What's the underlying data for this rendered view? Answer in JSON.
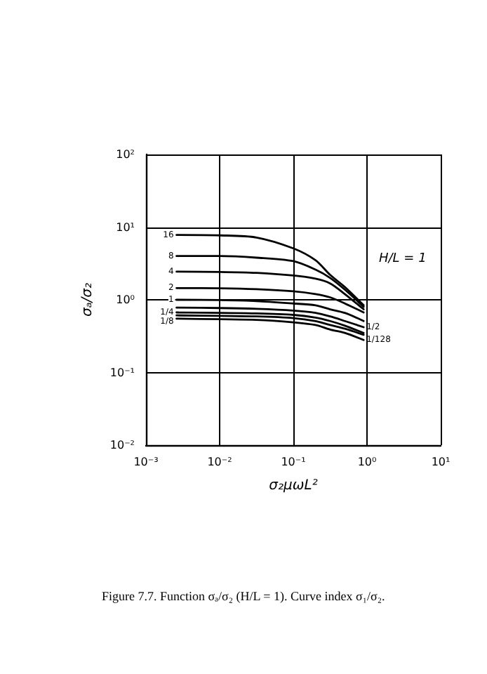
{
  "chart_data": {
    "type": "line",
    "xlabel": "σ₂μωL²",
    "ylabel": "σₐ/σ₂",
    "log": "xy",
    "grid": true,
    "marker": "none",
    "line_style": "solid",
    "xlim": [
      0.001,
      10
    ],
    "ylim": [
      0.01,
      100
    ],
    "xticks": [
      {
        "value": 0.001,
        "label": "10⁻³"
      },
      {
        "value": 0.01,
        "label": "10⁻²"
      },
      {
        "value": 0.1,
        "label": "10⁻¹"
      },
      {
        "value": 1,
        "label": "10⁰"
      },
      {
        "value": 10,
        "label": "10¹"
      }
    ],
    "yticks": [
      {
        "value": 0.01,
        "label": "10⁻²"
      },
      {
        "value": 0.1,
        "label": "10⁻¹"
      },
      {
        "value": 1,
        "label": "10⁰"
      },
      {
        "value": 10,
        "label": "10¹"
      },
      {
        "value": 100,
        "label": "10²"
      }
    ],
    "x": [
      0.0026,
      0.01,
      0.0316,
      0.1,
      0.2,
      0.316,
      0.5,
      0.9
    ],
    "series": [
      {
        "name": "16",
        "color": "#000000",
        "values": [
          7.8,
          7.7,
          7.2,
          5.1,
          3.5,
          2.2,
          1.5,
          0.84
        ]
      },
      {
        "name": "8",
        "color": "#000000",
        "values": [
          4.0,
          4.0,
          3.8,
          3.4,
          2.6,
          2.0,
          1.38,
          0.8
        ]
      },
      {
        "name": "4",
        "color": "#000000",
        "values": [
          2.44,
          2.42,
          2.35,
          2.16,
          1.95,
          1.68,
          1.2,
          0.74
        ]
      },
      {
        "name": "2",
        "color": "#000000",
        "values": [
          1.45,
          1.44,
          1.4,
          1.31,
          1.2,
          1.08,
          0.89,
          0.67
        ]
      },
      {
        "name": "1",
        "color": "#000000",
        "values": [
          1.0,
          0.99,
          0.96,
          0.89,
          0.84,
          0.74,
          0.66,
          0.51
        ]
      },
      {
        "name": "1/2",
        "color": "#000000",
        "values": [
          0.78,
          0.77,
          0.75,
          0.71,
          0.66,
          0.59,
          0.51,
          0.42
        ]
      },
      {
        "name": "1/4",
        "color": "#000000",
        "values": [
          0.67,
          0.66,
          0.65,
          0.62,
          0.57,
          0.51,
          0.44,
          0.35
        ]
      },
      {
        "name": "1/8",
        "color": "#000000",
        "values": [
          0.61,
          0.6,
          0.59,
          0.56,
          0.51,
          0.45,
          0.4,
          0.33
        ]
      },
      {
        "name": "1/128",
        "color": "#000000",
        "values": [
          0.55,
          0.54,
          0.53,
          0.49,
          0.45,
          0.39,
          0.35,
          0.28
        ]
      }
    ],
    "annotations": [
      "H/L = 1",
      "Figure 7.7. Function σₐ/σ₂ (H/L = 1). Curve index σ₁/σ₂."
    ]
  }
}
